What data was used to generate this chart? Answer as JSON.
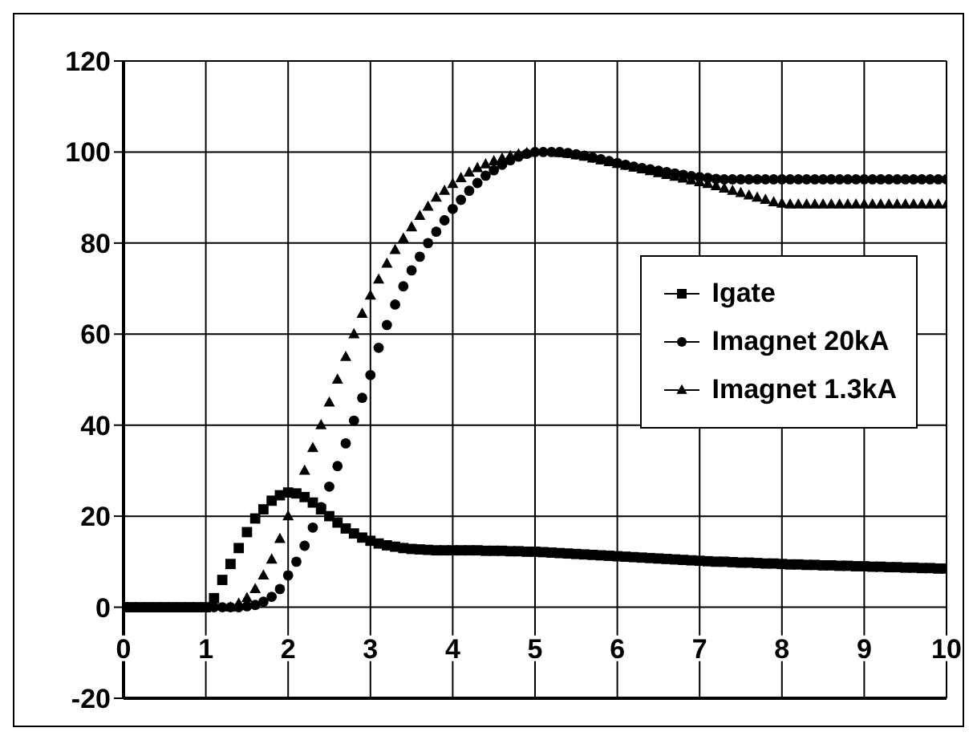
{
  "chart_data": {
    "type": "scatter",
    "xlim": [
      0,
      10
    ],
    "ylim": [
      -20,
      120
    ],
    "xticks": [
      0,
      1,
      2,
      3,
      4,
      5,
      6,
      7,
      8,
      9,
      10
    ],
    "yticks": [
      -20,
      0,
      20,
      40,
      60,
      80,
      100,
      120
    ],
    "grid": true,
    "legend": "right",
    "x": [
      0,
      0.1,
      0.2,
      0.3,
      0.4,
      0.5,
      0.6,
      0.7,
      0.8,
      0.9,
      1,
      1.1,
      1.2,
      1.3,
      1.4,
      1.5,
      1.6,
      1.7,
      1.8,
      1.9,
      2,
      2.1,
      2.2,
      2.3,
      2.4,
      2.5,
      2.6,
      2.7,
      2.8,
      2.9,
      3,
      3.1,
      3.2,
      3.3,
      3.4,
      3.5,
      3.6,
      3.7,
      3.8,
      3.9,
      4,
      4.1,
      4.2,
      4.3,
      4.4,
      4.5,
      4.6,
      4.7,
      4.8,
      4.9,
      5,
      5.1,
      5.2,
      5.3,
      5.4,
      5.5,
      5.6,
      5.7,
      5.8,
      5.9,
      6,
      6.1,
      6.2,
      6.3,
      6.4,
      6.5,
      6.6,
      6.7,
      6.8,
      6.9,
      7,
      7.1,
      7.2,
      7.3,
      7.4,
      7.5,
      7.6,
      7.7,
      7.8,
      7.9,
      8,
      8.1,
      8.2,
      8.3,
      8.4,
      8.5,
      8.6,
      8.7,
      8.8,
      8.9,
      9,
      9.1,
      9.2,
      9.3,
      9.4,
      9.5,
      9.6,
      9.7,
      9.8,
      9.9,
      10
    ],
    "series": [
      {
        "name": "Igate",
        "color": "#000000",
        "marker": "square",
        "values": [
          0,
          0,
          0,
          0,
          0,
          0,
          0,
          0,
          0,
          0,
          0,
          2,
          6,
          9.5,
          13,
          16.5,
          19.5,
          21.5,
          23.4,
          24.6,
          25.2,
          25,
          24.2,
          23,
          21.5,
          20,
          18.6,
          17.3,
          16.2,
          15.3,
          14.6,
          14,
          13.6,
          13.3,
          13,
          12.8,
          12.7,
          12.6,
          12.5,
          12.5,
          12.5,
          12.5,
          12.5,
          12.5,
          12.4,
          12.4,
          12.4,
          12.3,
          12.3,
          12.2,
          12.2,
          12.1,
          12,
          11.9,
          11.8,
          11.7,
          11.6,
          11.5,
          11.4,
          11.3,
          11.2,
          11.1,
          11,
          10.9,
          10.8,
          10.7,
          10.6,
          10.5,
          10.4,
          10.3,
          10.2,
          10.1,
          10,
          10,
          9.9,
          9.8,
          9.8,
          9.7,
          9.6,
          9.6,
          9.5,
          9.4,
          9.4,
          9.3,
          9.3,
          9.2,
          9.2,
          9.1,
          9.1,
          9,
          9,
          8.9,
          8.9,
          8.8,
          8.8,
          8.7,
          8.7,
          8.6,
          8.6,
          8.5,
          8.5
        ]
      },
      {
        "name": "Imagnet  20kA",
        "color": "#000000",
        "marker": "circle",
        "values": [
          null,
          null,
          null,
          null,
          null,
          null,
          null,
          null,
          null,
          null,
          null,
          0,
          0,
          0,
          0,
          0.2,
          0.5,
          1.2,
          2.3,
          4,
          7,
          10,
          13.5,
          17.5,
          22,
          26.5,
          31,
          36,
          41,
          46,
          51,
          57,
          62,
          66.5,
          70.5,
          74,
          77,
          80,
          82.5,
          85,
          87.5,
          89.5,
          91.5,
          93.2,
          94.8,
          96,
          97.2,
          98.2,
          99,
          99.6,
          100,
          100,
          100,
          100,
          99.8,
          99.5,
          99.2,
          98.8,
          98.4,
          98,
          97.6,
          97.2,
          96.8,
          96.5,
          96.2,
          95.9,
          95.6,
          95.3,
          95,
          94.7,
          94.5,
          94.3,
          94.1,
          94,
          94,
          94,
          94,
          94,
          94,
          94,
          94,
          94,
          94,
          94,
          94,
          94,
          94,
          94,
          94,
          94,
          94,
          94,
          94,
          94,
          94,
          94,
          94,
          94,
          94,
          94,
          94
        ]
      },
      {
        "name": "Imagnet 1.3kA",
        "color": "#000000",
        "marker": "triangle",
        "values": [
          null,
          null,
          null,
          null,
          null,
          null,
          null,
          null,
          null,
          null,
          null,
          null,
          null,
          0,
          0.8,
          2,
          4,
          7,
          10.5,
          15,
          20,
          null,
          30,
          35,
          40,
          45,
          50,
          55,
          60,
          64.5,
          68.5,
          72,
          75.5,
          78.5,
          81,
          83.5,
          86,
          88,
          90,
          91.5,
          93,
          94.3,
          95.5,
          96.5,
          97.3,
          98,
          98.6,
          99.1,
          99.5,
          99.8,
          null,
          null,
          null,
          99.8,
          99.6,
          99.3,
          99,
          98.6,
          98.2,
          97.8,
          97.4,
          97,
          96.6,
          96.2,
          95.8,
          95.4,
          95,
          94.6,
          94.2,
          93.8,
          93.4,
          93,
          92.5,
          92,
          91.5,
          91,
          90.5,
          90,
          89.5,
          89,
          88.7,
          88.5,
          88.5,
          88.5,
          88.5,
          88.5,
          88.5,
          88.5,
          88.5,
          88.5,
          88.5,
          88.5,
          88.5,
          88.5,
          88.5,
          88.5,
          88.5,
          88.5,
          88.5,
          88.5,
          88.5
        ]
      }
    ]
  }
}
